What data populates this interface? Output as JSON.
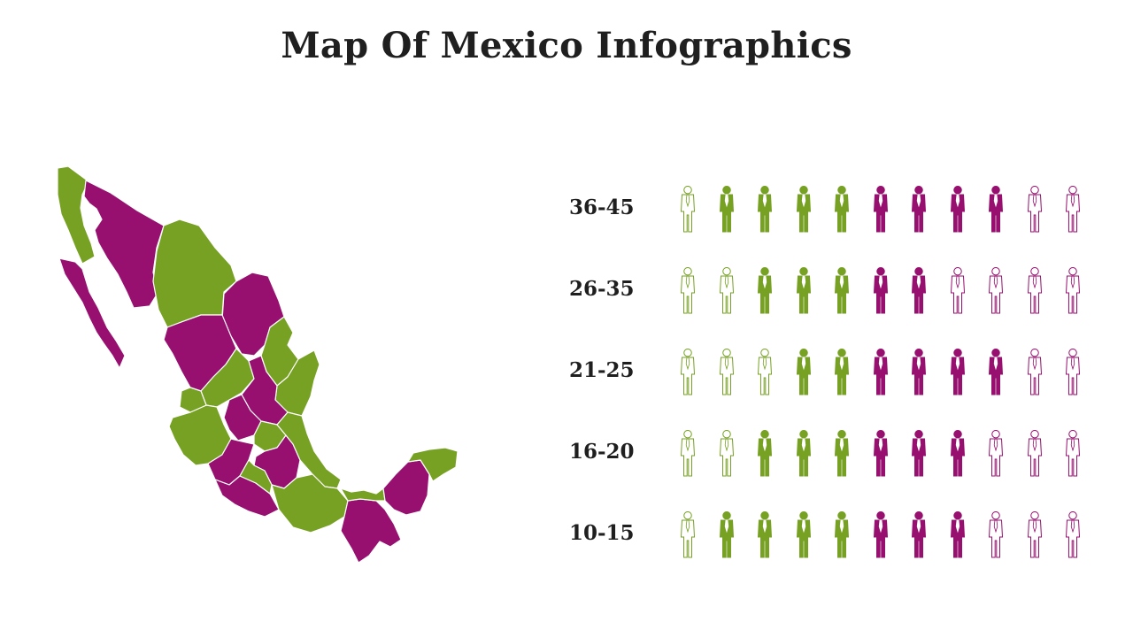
{
  "title": "Map Of Mexico Infographics",
  "colors": {
    "green": "#76a122",
    "purple": "#970f6f",
    "text": "#1f1f1f",
    "background": "#ffffff"
  },
  "map": {
    "name": "mexico-map",
    "colors_in_use": [
      "green",
      "purple"
    ]
  },
  "rows": [
    {
      "label": "36-45",
      "icons": [
        "green-outline",
        "green-filled",
        "green-filled",
        "green-filled",
        "green-filled",
        "purple-filled",
        "purple-filled",
        "purple-filled",
        "purple-filled",
        "purple-outline",
        "purple-outline"
      ]
    },
    {
      "label": "26-35",
      "icons": [
        "green-outline",
        "green-outline",
        "green-filled",
        "green-filled",
        "green-filled",
        "purple-filled",
        "purple-filled",
        "purple-outline",
        "purple-outline",
        "purple-outline",
        "purple-outline"
      ]
    },
    {
      "label": "21-25",
      "icons": [
        "green-outline",
        "green-outline",
        "green-outline",
        "green-filled",
        "green-filled",
        "purple-filled",
        "purple-filled",
        "purple-filled",
        "purple-filled",
        "purple-outline",
        "purple-outline"
      ]
    },
    {
      "label": "16-20",
      "icons": [
        "green-outline",
        "green-outline",
        "green-filled",
        "green-filled",
        "green-filled",
        "purple-filled",
        "purple-filled",
        "purple-filled",
        "purple-outline",
        "purple-outline",
        "purple-outline"
      ]
    },
    {
      "label": "10-15",
      "icons": [
        "green-outline",
        "green-filled",
        "green-filled",
        "green-filled",
        "green-filled",
        "purple-filled",
        "purple-filled",
        "purple-filled",
        "purple-outline",
        "purple-outline",
        "purple-outline"
      ]
    }
  ],
  "icon_name": "person-icon"
}
